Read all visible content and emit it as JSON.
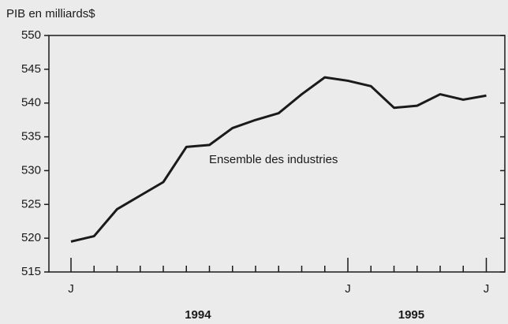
{
  "chart_data": {
    "type": "line",
    "y_axis_label": "PIB en milliards$",
    "annotation": "Ensemble des industries",
    "categories": [
      "J",
      null,
      null,
      null,
      null,
      null,
      null,
      null,
      null,
      null,
      null,
      null,
      "J",
      null,
      null,
      null,
      null,
      null,
      "J"
    ],
    "year_labels": [
      "1994",
      "1995"
    ],
    "series": [
      {
        "name": "Ensemble des industries",
        "color": "#1a1a1a",
        "values": [
          519.5,
          520.3,
          524.3,
          526.3,
          528.3,
          533.5,
          533.8,
          536.3,
          537.5,
          538.5,
          541.3,
          543.8,
          543.3,
          542.5,
          539.3,
          539.6,
          541.3,
          540.5,
          541.1
        ]
      }
    ],
    "ylim": [
      515,
      550
    ],
    "yticks": [
      515,
      520,
      525,
      530,
      535,
      540,
      545,
      550
    ]
  }
}
